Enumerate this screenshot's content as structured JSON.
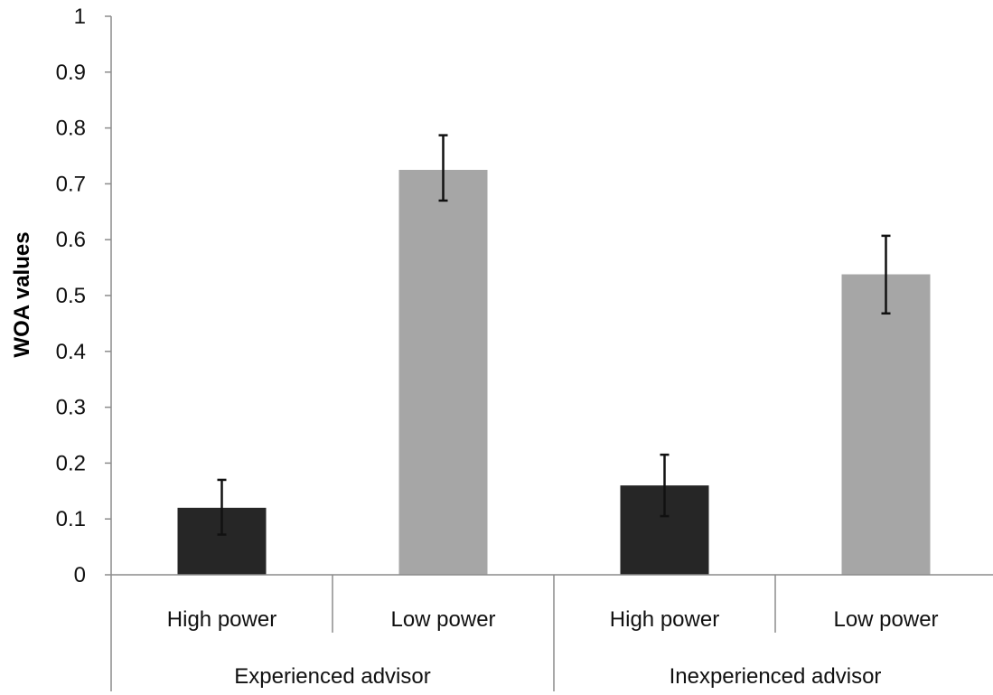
{
  "chart_data": {
    "type": "bar",
    "title": "",
    "ylabel": "WOA values",
    "xlabel": "",
    "ylim": [
      0,
      1
    ],
    "y_ticks": [
      "0",
      "0.1",
      "0.2",
      "0.3",
      "0.4",
      "0.5",
      "0.6",
      "0.7",
      "0.8",
      "0.9",
      "1"
    ],
    "grid": false,
    "legend": null,
    "groups": [
      "Experienced advisor",
      "Inexperienced advisor"
    ],
    "categories": [
      "High power",
      "Low power",
      "High power",
      "Low power"
    ],
    "values": [
      0.12,
      0.725,
      0.16,
      0.538
    ],
    "error_bars": [
      {
        "low": 0.072,
        "high": 0.17
      },
      {
        "low": 0.67,
        "high": 0.787
      },
      {
        "low": 0.105,
        "high": 0.215
      },
      {
        "low": 0.468,
        "high": 0.607
      }
    ],
    "colors": {
      "High power": "#262626",
      "Low power": "#a6a6a6"
    }
  }
}
